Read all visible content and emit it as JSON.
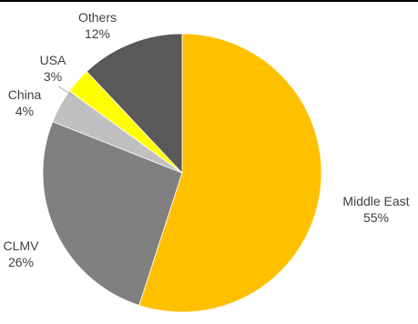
{
  "chart_data": {
    "type": "pie",
    "title": "",
    "slices": [
      {
        "label": "Middle East",
        "value": 55,
        "value_label": "55%",
        "color": "#FFC000"
      },
      {
        "label": "CLMV",
        "value": 26,
        "value_label": "26%",
        "color": "#808080"
      },
      {
        "label": "China",
        "value": 4,
        "value_label": "4%",
        "color": "#C0C0C0"
      },
      {
        "label": "USA",
        "value": 3,
        "value_label": "3%",
        "color": "#FFFF00"
      },
      {
        "label": "Others",
        "value": 12,
        "value_label": "12%",
        "color": "#595959"
      }
    ],
    "start_angle_deg": 0,
    "direction": "clockwise",
    "legend": "none",
    "labels": "outside"
  }
}
